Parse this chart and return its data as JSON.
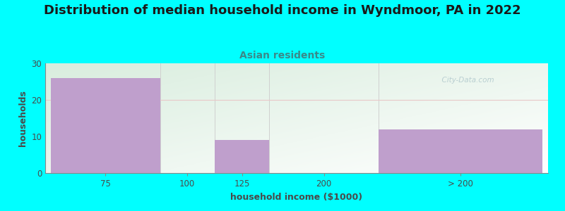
{
  "title": "Distribution of median household income in Wyndmoor, PA in 2022",
  "subtitle": "Asian residents",
  "xlabel": "household income ($1000)",
  "ylabel": "households",
  "bar_labels": [
    "75",
    "100",
    "125",
    "200",
    "> 200"
  ],
  "bar_left_edges": [
    0,
    1,
    1.5,
    2,
    3
  ],
  "bar_widths": [
    1,
    0.5,
    0.5,
    1,
    1.5
  ],
  "bar_heights": [
    26,
    0,
    9,
    0,
    12
  ],
  "bar_colors": [
    "#bf9fcc",
    "#bf9fcc",
    "#bf9fcc",
    "#bf9fcc",
    "#bf9fcc"
  ],
  "tick_positions": [
    0.5,
    1.25,
    1.75,
    2.5,
    3.75
  ],
  "xlim": [
    -0.05,
    4.55
  ],
  "ylim": [
    0,
    30
  ],
  "yticks": [
    0,
    10,
    20,
    30
  ],
  "background_color": "#00ffff",
  "plot_bg_top_left": "#d8eedd",
  "plot_bg_bottom_right": "#f8f8ff",
  "title_fontsize": 13,
  "subtitle_fontsize": 10,
  "title_color": "#1a1a1a",
  "subtitle_color": "#3a8a8a",
  "axis_label_color": "#4a4a4a",
  "tick_color": "#4a4a4a",
  "grid_line_color": "#d0d0d0",
  "hline_color": "#e8c8c8",
  "watermark": "  City-Data.com"
}
